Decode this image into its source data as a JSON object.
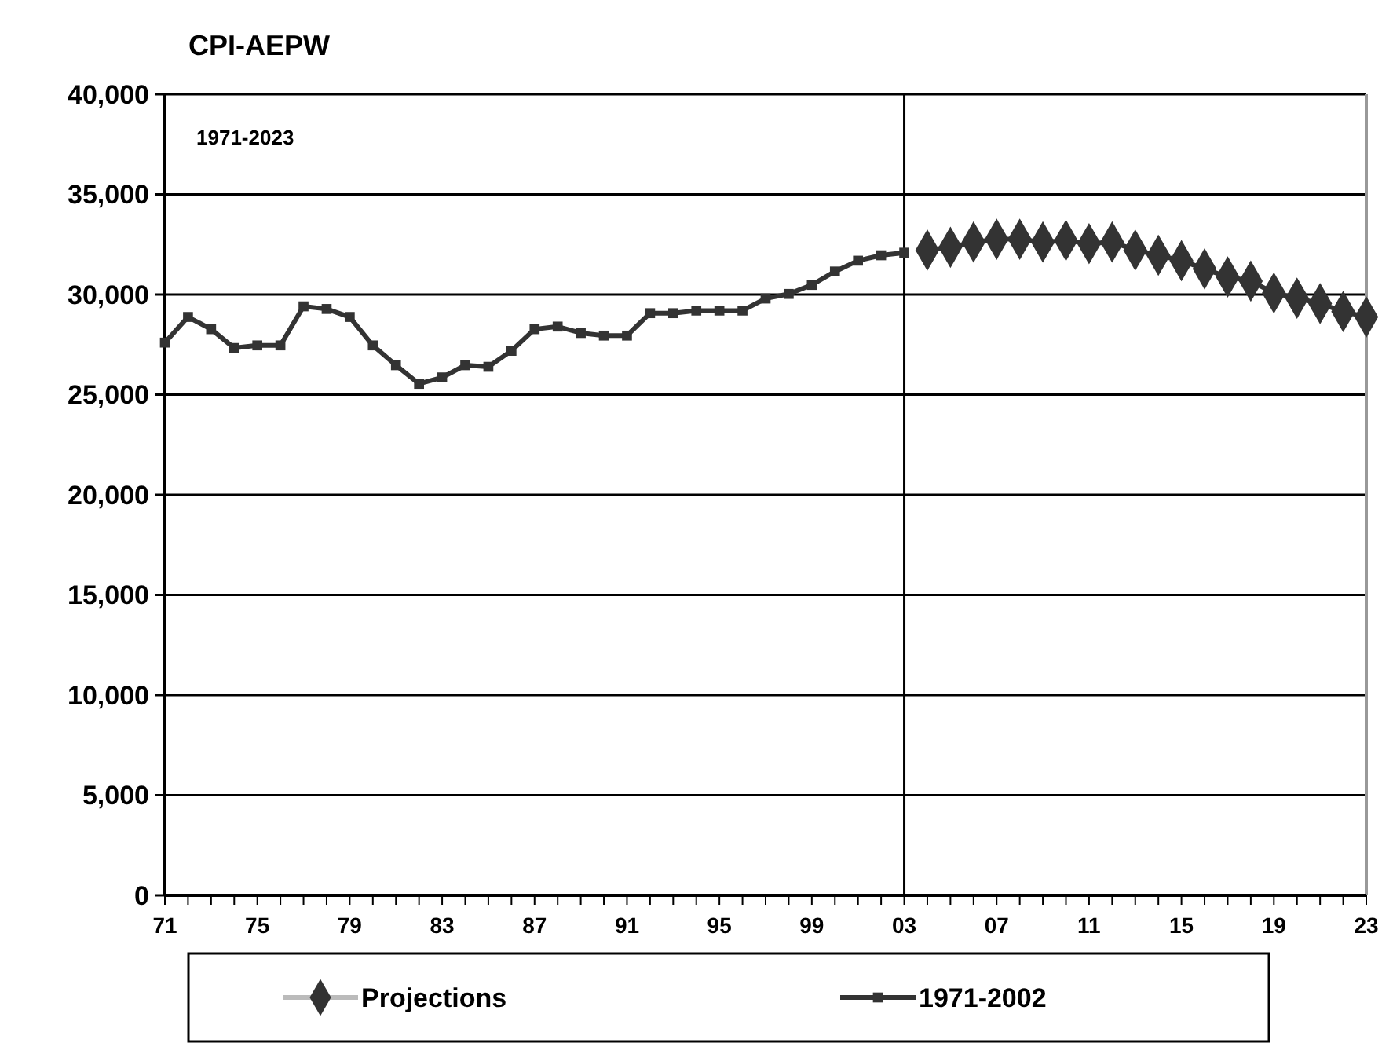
{
  "chart_data": {
    "type": "line",
    "title": "CPI-AEPW",
    "annotations": [
      "1971-2023"
    ],
    "categories": [
      "71",
      null,
      null,
      null,
      "75",
      null,
      null,
      null,
      "79",
      null,
      null,
      null,
      "83",
      null,
      null,
      null,
      "87",
      null,
      null,
      null,
      "91",
      null,
      null,
      null,
      "95",
      null,
      null,
      null,
      "99",
      null,
      null,
      null,
      "03",
      null,
      null,
      null,
      "07",
      null,
      null,
      null,
      "11",
      null,
      null,
      null,
      "15",
      null,
      null,
      null,
      "19",
      null,
      null,
      null,
      "23"
    ],
    "series": [
      {
        "name": "Projections",
        "color": "#333333",
        "marker": "diamond",
        "values": [
          null,
          null,
          null,
          null,
          null,
          null,
          null,
          null,
          null,
          null,
          null,
          null,
          null,
          null,
          null,
          null,
          null,
          null,
          null,
          null,
          null,
          null,
          null,
          null,
          null,
          null,
          null,
          null,
          null,
          null,
          null,
          null,
          null,
          32220,
          32360,
          32620,
          32760,
          32760,
          32620,
          32700,
          32540,
          32620,
          32220,
          31960,
          31690,
          31280,
          30880,
          30670,
          30080,
          29820,
          29550,
          29150,
          28880
        ]
      },
      {
        "name": "1971-2002",
        "color": "#333333",
        "marker": "square",
        "values": [
          27600,
          28880,
          28270,
          27330,
          27460,
          27460,
          29410,
          29280,
          28880,
          27460,
          26470,
          25540,
          25860,
          26470,
          26390,
          27190,
          28270,
          28400,
          28080,
          27950,
          27950,
          29070,
          29070,
          29200,
          29200,
          29200,
          29800,
          30030,
          30480,
          31150,
          31690,
          31960,
          32090,
          null,
          null,
          null,
          null,
          null,
          null,
          null,
          null,
          null,
          null,
          null,
          null,
          null,
          null,
          null,
          null,
          null,
          null,
          null,
          null
        ]
      }
    ],
    "ylim": [
      0,
      40000
    ],
    "yticks": [
      {
        "value": 0,
        "label": "0"
      },
      {
        "value": 5000,
        "label": "5,000"
      },
      {
        "value": 10000,
        "label": "10,000"
      },
      {
        "value": 15000,
        "label": "15,000"
      },
      {
        "value": 20000,
        "label": "20,000"
      },
      {
        "value": 25000,
        "label": "25,000"
      },
      {
        "value": 30000,
        "label": "30,000"
      },
      {
        "value": 35000,
        "label": "35,000"
      },
      {
        "value": 40000,
        "label": "40,000"
      }
    ],
    "grid": "y",
    "legend": "bottom",
    "line_style": "solid",
    "ref_lines": [
      {
        "axis": "x",
        "value": "03",
        "color": "#000000"
      }
    ]
  }
}
